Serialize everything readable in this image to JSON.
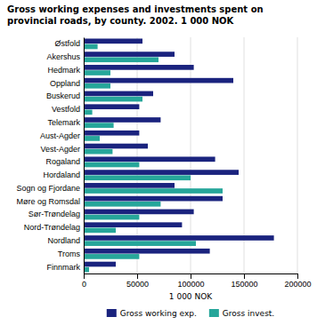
{
  "chart_data": {
    "type": "bar",
    "orientation": "horizontal",
    "title": "Gross working expenses and investments spent on\nprovincial roads, by county. 2002. 1 000 NOK",
    "xlabel": "1 000 NOK",
    "categories": [
      "Østfold",
      "Akershus",
      "Hedmark",
      "Oppland",
      "Buskerud",
      "Vestfold",
      "Telemark",
      "Aust-Agder",
      "Vest-Agder",
      "Rogaland",
      "Hordaland",
      "Sogn og Fjordane",
      "Møre og Romsdal",
      "Sør-Trøndelag",
      "Nord-Trøndelag",
      "Nordland",
      "Troms",
      "Finnmark"
    ],
    "series": [
      {
        "name": "Gross working exp.",
        "color": "#1a237e",
        "values": [
          55000,
          85000,
          103000,
          140000,
          65000,
          52000,
          72000,
          52000,
          60000,
          123000,
          145000,
          85000,
          130000,
          103000,
          92000,
          178000,
          118000,
          30000
        ]
      },
      {
        "name": "Gross invest.",
        "color": "#26a69a",
        "values": [
          13000,
          70000,
          25000,
          25000,
          55000,
          8000,
          28000,
          15000,
          27000,
          52000,
          100000,
          130000,
          72000,
          52000,
          30000,
          105000,
          52000,
          5000
        ]
      }
    ],
    "xlim": [
      0,
      200000
    ],
    "xticks": [
      0,
      50000,
      100000,
      150000,
      200000
    ],
    "grid": true,
    "legend": "bottom"
  }
}
